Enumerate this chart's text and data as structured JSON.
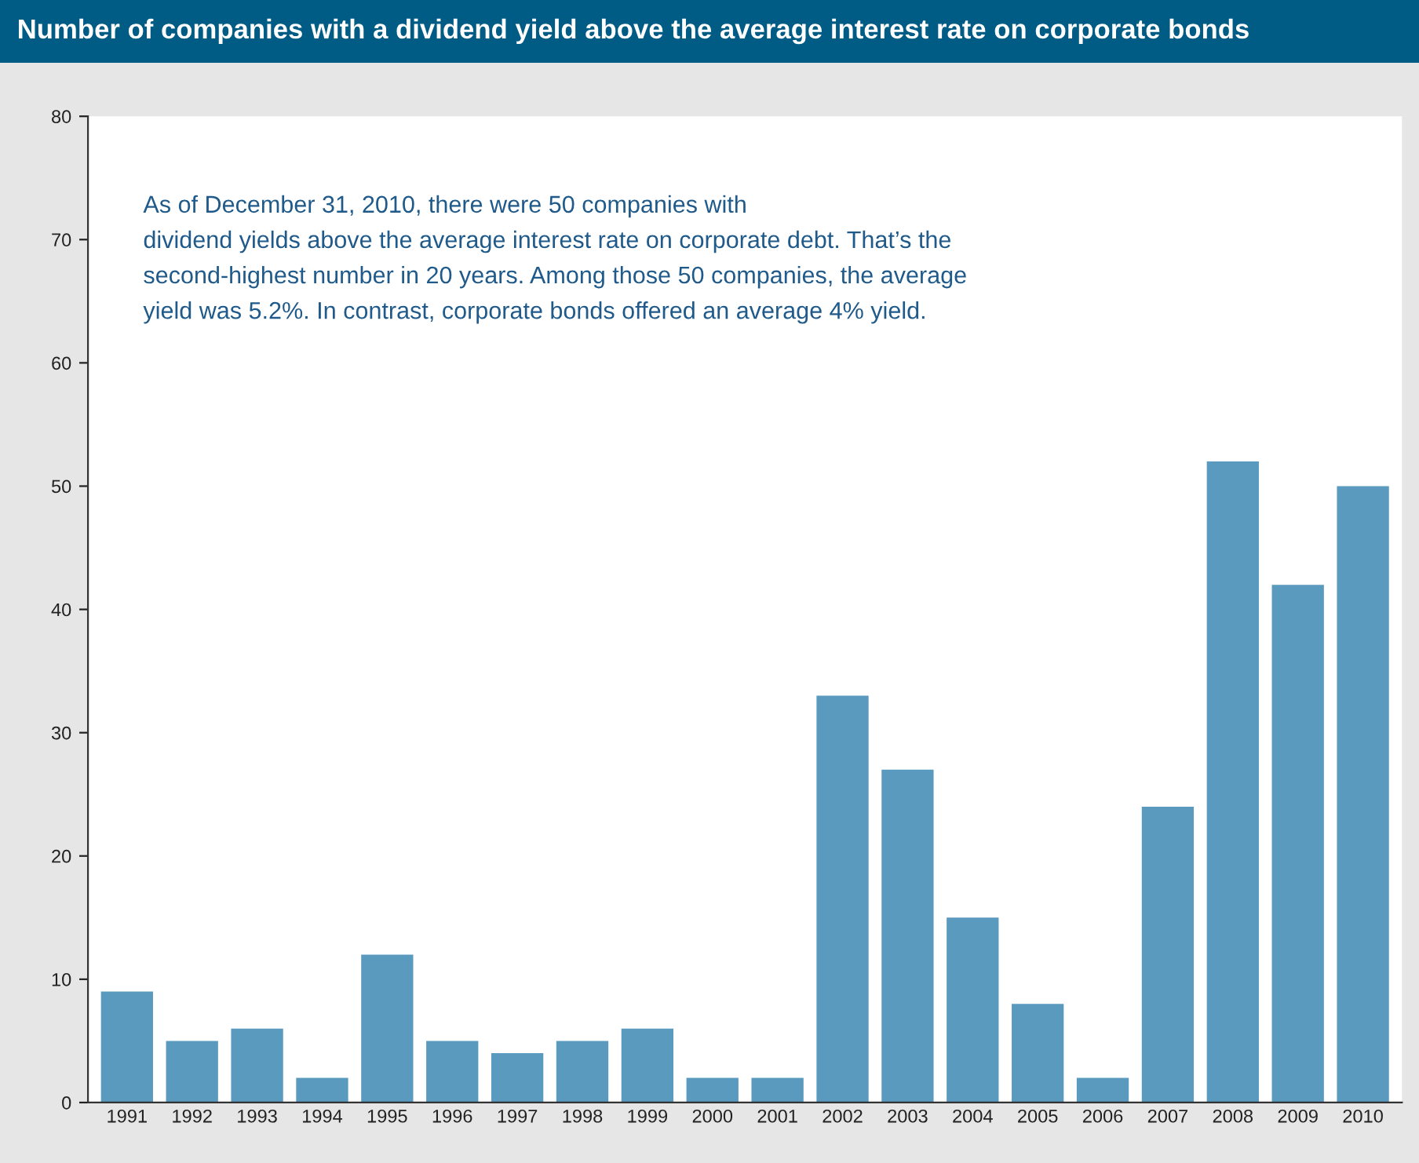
{
  "chart_data": {
    "type": "bar",
    "title": "Number of companies with a dividend yield above the average interest rate on corporate bonds",
    "categories": [
      "1991",
      "1992",
      "1993",
      "1994",
      "1995",
      "1996",
      "1997",
      "1998",
      "1999",
      "2000",
      "2001",
      "2002",
      "2003",
      "2004",
      "2005",
      "2006",
      "2007",
      "2008",
      "2009",
      "2010"
    ],
    "values": [
      9,
      5,
      6,
      2,
      12,
      5,
      4,
      5,
      6,
      2,
      2,
      33,
      27,
      15,
      8,
      2,
      24,
      52,
      42,
      50
    ],
    "color": "#5b9abf",
    "ylim": [
      0,
      80
    ],
    "yticks": [
      0,
      10,
      20,
      30,
      40,
      50,
      60,
      70,
      80
    ],
    "grid": false,
    "legend": false,
    "annotations": [
      "As of December 31, 2010, there were 50 companies with\ndividend yields above the average interest rate on corporate debt. That’s the\nsecond-highest number in 20 years. Among those 50 companies, the average\nyield was 5.2%. In contrast, corporate bonds offered an average 4% yield."
    ]
  }
}
